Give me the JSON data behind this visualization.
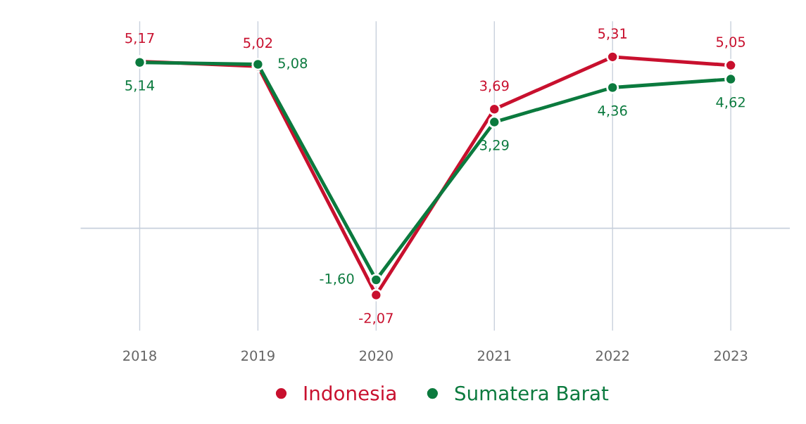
{
  "chart_data": {
    "type": "line",
    "categories": [
      "2018",
      "2019",
      "2020",
      "2021",
      "2022",
      "2023"
    ],
    "series": [
      {
        "name": "Indonesia",
        "color": "#c8102e",
        "values": [
          5.17,
          5.02,
          -2.07,
          3.69,
          5.31,
          5.05
        ],
        "value_labels": [
          "5,17",
          "5,02",
          "-2,07",
          "3,69",
          "5,31",
          "5,05"
        ]
      },
      {
        "name": "Sumatera Barat",
        "color": "#0b7a3e",
        "values": [
          5.14,
          5.08,
          -1.6,
          3.29,
          4.36,
          4.62
        ],
        "value_labels": [
          "5,14",
          "5,08",
          "-1,60",
          "3,29",
          "4,36",
          "4,62"
        ]
      }
    ],
    "tick_labels": "x",
    "grid": "x",
    "legend": "bottom",
    "marker": "circle",
    "line_style": "solid",
    "ref_lines": [
      {
        "axis": "y",
        "value": 0,
        "color": "#c8d0dc"
      }
    ]
  }
}
